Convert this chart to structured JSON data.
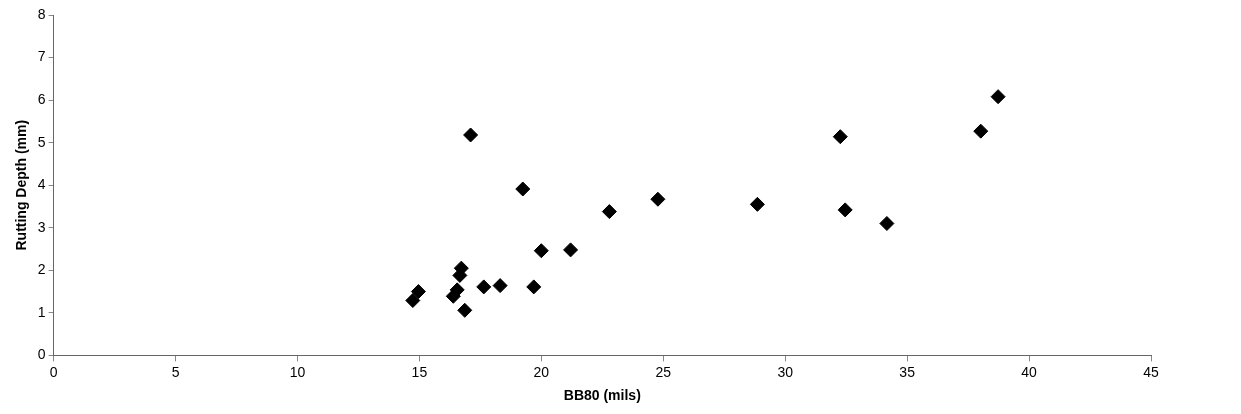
{
  "chart_data": {
    "type": "scatter",
    "xlabel": "BB80 (mils)",
    "ylabel": "Rutting Depth (mm)",
    "x": [
      17.1,
      19.24,
      24.78,
      22.79,
      20.0,
      21.2,
      16.72,
      16.66,
      17.64,
      18.31,
      19.69,
      16.55,
      16.39,
      16.86,
      14.96,
      14.73,
      28.86,
      32.26,
      32.46,
      34.17,
      38.02,
      38.73
    ],
    "values": [
      5.18,
      3.91,
      3.67,
      3.38,
      2.46,
      2.48,
      2.05,
      1.88,
      1.61,
      1.64,
      1.61,
      1.54,
      1.39,
      1.06,
      1.5,
      1.29,
      3.55,
      5.14,
      3.42,
      3.1,
      5.27,
      6.08
    ],
    "color": "#000000",
    "marker": "diamond",
    "grid": false,
    "legend": false,
    "xlim": [
      0,
      45
    ],
    "xticks": [
      0,
      5,
      10,
      15,
      20,
      25,
      30,
      35,
      40,
      45
    ],
    "ylim": [
      0,
      8
    ],
    "yticks": [
      0,
      1,
      2,
      3,
      4,
      5,
      6,
      7,
      8
    ]
  }
}
